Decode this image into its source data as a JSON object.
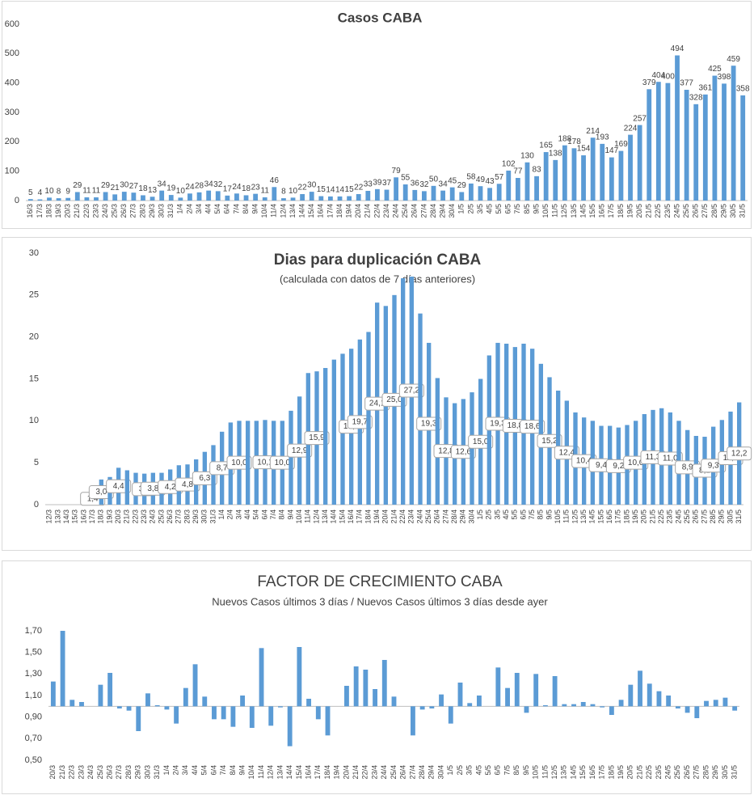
{
  "chart_data": [
    {
      "type": "bar",
      "title": "Casos  CABA",
      "color": "#5b9bd5",
      "ylim": [
        0,
        600
      ],
      "yticks": [
        0,
        100,
        200,
        300,
        400,
        500,
        600
      ],
      "baseline": 0,
      "data_labels": true,
      "categories": [
        "16/3",
        "17/3",
        "18/3",
        "19/3",
        "20/3",
        "21/3",
        "22/3",
        "23/3",
        "24/3",
        "25/3",
        "26/3",
        "27/3",
        "28/3",
        "29/3",
        "30/3",
        "31/3",
        "1/4",
        "2/4",
        "3/4",
        "4/4",
        "5/4",
        "6/4",
        "7/4",
        "8/4",
        "9/4",
        "10/4",
        "11/4",
        "12/4",
        "13/4",
        "14/4",
        "15/4",
        "16/4",
        "17/4",
        "18/4",
        "19/4",
        "20/4",
        "21/4",
        "22/4",
        "23/4",
        "24/4",
        "25/4",
        "26/4",
        "27/4",
        "28/4",
        "29/4",
        "30/4",
        "1/5",
        "2/5",
        "3/5",
        "4/5",
        "5/5",
        "6/5",
        "7/5",
        "8/5",
        "9/5",
        "10/5",
        "11/5",
        "12/5",
        "13/5",
        "14/5",
        "15/5",
        "16/5",
        "17/5",
        "18/5",
        "19/5",
        "20/5",
        "21/5",
        "22/5",
        "23/5",
        "24/5",
        "25/5",
        "26/5",
        "27/5",
        "28/5",
        "29/5",
        "30/5",
        "31/5"
      ],
      "values": [
        5,
        4,
        10,
        8,
        9,
        29,
        11,
        11,
        29,
        21,
        30,
        27,
        18,
        13,
        34,
        19,
        10,
        24,
        28,
        34,
        32,
        17,
        24,
        18,
        23,
        11,
        46,
        8,
        10,
        22,
        30,
        15,
        14,
        14,
        15,
        22,
        33,
        39,
        37,
        79,
        55,
        36,
        32,
        50,
        34,
        45,
        29,
        58,
        49,
        43,
        57,
        102,
        77,
        130,
        83,
        165,
        138,
        188,
        178,
        154,
        214,
        193,
        147,
        169,
        224,
        257,
        379,
        404,
        400,
        494,
        377,
        328,
        361,
        425,
        398,
        459,
        358
      ]
    },
    {
      "type": "bar",
      "title": "Dias para duplicación CABA",
      "subtitle": "(calculada con datos de 7 días anteriores)",
      "color": "#5b9bd5",
      "ylim": [
        0,
        30
      ],
      "yticks": [
        0,
        5,
        10,
        15,
        20,
        25,
        30
      ],
      "baseline": 0,
      "categories": [
        "12/3",
        "13/3",
        "14/3",
        "15/3",
        "16/3",
        "17/3",
        "18/3",
        "19/3",
        "20/3",
        "21/3",
        "22/3",
        "23/3",
        "24/3",
        "25/3",
        "26/3",
        "27/3",
        "28/3",
        "29/3",
        "30/3",
        "31/3",
        "1/4",
        "2/4",
        "3/4",
        "4/4",
        "5/4",
        "6/4",
        "7/4",
        "8/4",
        "9/4",
        "10/4",
        "11/4",
        "12/4",
        "13/4",
        "14/4",
        "15/4",
        "16/4",
        "17/4",
        "18/4",
        "19/4",
        "20/4",
        "21/4",
        "22/4",
        "23/4",
        "24/4",
        "25/4",
        "26/4",
        "27/4",
        "28/4",
        "29/4",
        "30/4",
        "1/5",
        "2/5",
        "3/5",
        "4/5",
        "5/5",
        "6/5",
        "7/5",
        "8/5",
        "9/5",
        "10/5",
        "11/5",
        "12/5",
        "13/5",
        "14/5",
        "15/5",
        "16/5",
        "17/5",
        "18/5",
        "19/5",
        "20/5",
        "21/5",
        "22/5",
        "23/5",
        "24/5",
        "25/5",
        "26/5",
        "27/5",
        "28/5",
        "29/5",
        "30/5",
        "31/5"
      ],
      "values": [
        null,
        null,
        null,
        null,
        0.7,
        1.4,
        3.0,
        3.3,
        4.4,
        4.1,
        3.8,
        3.7,
        3.8,
        3.8,
        4.2,
        4.7,
        4.8,
        5.4,
        6.3,
        7.1,
        8.7,
        9.8,
        10.0,
        10.0,
        10.0,
        10.1,
        10.0,
        10.0,
        11.2,
        12.9,
        15.7,
        15.9,
        16.3,
        17.3,
        18.0,
        18.6,
        19.7,
        20.6,
        24.1,
        23.7,
        25.0,
        27.0,
        27.2,
        22.8,
        19.3,
        15.1,
        12.8,
        12.1,
        12.6,
        13.4,
        15.0,
        17.8,
        19.3,
        19.2,
        18.8,
        19.2,
        18.6,
        16.8,
        15.2,
        13.6,
        12.4,
        11.0,
        10.4,
        10.0,
        9.4,
        9.4,
        9.2,
        9.5,
        10.0,
        10.8,
        11.3,
        11.5,
        11.0,
        10.0,
        8.9,
        8.2,
        8.1,
        9.3,
        10.1,
        11.1,
        12.2
      ],
      "value_labels": [
        null,
        null,
        null,
        null,
        null,
        "1,4",
        "3,0",
        null,
        "4,4",
        null,
        null,
        "3,7",
        "3,8",
        null,
        "4,2",
        null,
        "4,8",
        null,
        "6,3",
        null,
        "8,7",
        null,
        "10,0",
        null,
        null,
        "10,1",
        null,
        "10,0",
        null,
        "12,9",
        null,
        "15,9",
        null,
        null,
        null,
        "18,6",
        "19,7",
        null,
        "24,1",
        null,
        "25,0",
        null,
        "27,2",
        null,
        "19,3",
        null,
        "12,8",
        null,
        "12,6",
        null,
        "15,0",
        null,
        "19,3",
        null,
        "18,8",
        null,
        "18,6",
        null,
        "15,2",
        null,
        "12,4",
        null,
        "10,4",
        null,
        "9,4",
        null,
        "9,2",
        null,
        "10,0",
        null,
        "11,3",
        null,
        "11,0",
        null,
        "8,9",
        null,
        "8,1",
        "9,3",
        null,
        "11,1",
        "12,2"
      ]
    },
    {
      "type": "bar",
      "title": "FACTOR DE CRECIMIENTO CABA",
      "subtitle": "Nuevos Casos últimos 3 días / Nuevos Casos últimos 3 días desde ayer",
      "color": "#5b9bd5",
      "ylim": [
        0.5,
        1.7
      ],
      "baseline": 1,
      "yticks": [
        {
          "value": 0.5,
          "label": "0,50"
        },
        {
          "value": 0.7,
          "label": "0,70"
        },
        {
          "value": 0.9,
          "label": "0,90"
        },
        {
          "value": 1.1,
          "label": "1,10"
        },
        {
          "value": 1.3,
          "label": "1,30"
        },
        {
          "value": 1.5,
          "label": "1,50"
        },
        {
          "value": 1.7,
          "label": "1,70"
        }
      ],
      "categories": [
        "20/3",
        "21/3",
        "22/3",
        "23/3",
        "24/3",
        "25/3",
        "26/3",
        "27/3",
        "28/3",
        "29/3",
        "30/3",
        "31/3",
        "1/4",
        "2/4",
        "3/4",
        "4/4",
        "5/4",
        "6/4",
        "7/4",
        "8/4",
        "9/4",
        "10/4",
        "11/4",
        "12/4",
        "13/4",
        "14/4",
        "15/4",
        "16/4",
        "17/4",
        "18/4",
        "19/4",
        "20/4",
        "21/4",
        "22/4",
        "23/4",
        "24/4",
        "25/4",
        "26/4",
        "27/4",
        "28/4",
        "29/4",
        "30/4",
        "1/5",
        "2/5",
        "3/5",
        "4/5",
        "5/5",
        "6/5",
        "7/5",
        "8/5",
        "9/5",
        "10/5",
        "11/5",
        "12/5",
        "13/5",
        "14/5",
        "15/5",
        "16/5",
        "17/5",
        "18/5",
        "19/5",
        "20/5",
        "21/5",
        "22/5",
        "23/5",
        "24/5",
        "25/5",
        "26/5",
        "27/5",
        "28/5",
        "29/5",
        "30/5",
        "31/5"
      ],
      "values": [
        1.23,
        1.7,
        1.06,
        1.04,
        1.0,
        1.2,
        1.31,
        0.98,
        0.96,
        0.77,
        1.12,
        1.01,
        0.97,
        0.84,
        1.17,
        1.39,
        1.09,
        0.88,
        0.88,
        0.81,
        1.1,
        0.8,
        1.54,
        0.82,
        0.99,
        0.63,
        1.55,
        1.07,
        0.88,
        0.73,
        1.0,
        1.19,
        1.37,
        1.34,
        1.16,
        1.43,
        1.09,
        1.0,
        0.73,
        0.97,
        0.98,
        1.11,
        0.84,
        1.22,
        1.03,
        1.1,
        1.0,
        1.36,
        1.17,
        1.31,
        0.94,
        1.3,
        1.01,
        1.28,
        1.02,
        1.02,
        1.04,
        1.02,
        0.99,
        0.92,
        1.06,
        1.2,
        1.33,
        1.21,
        1.14,
        1.1,
        0.98,
        0.94,
        0.89,
        1.05,
        1.06,
        1.08,
        0.96
      ]
    }
  ]
}
